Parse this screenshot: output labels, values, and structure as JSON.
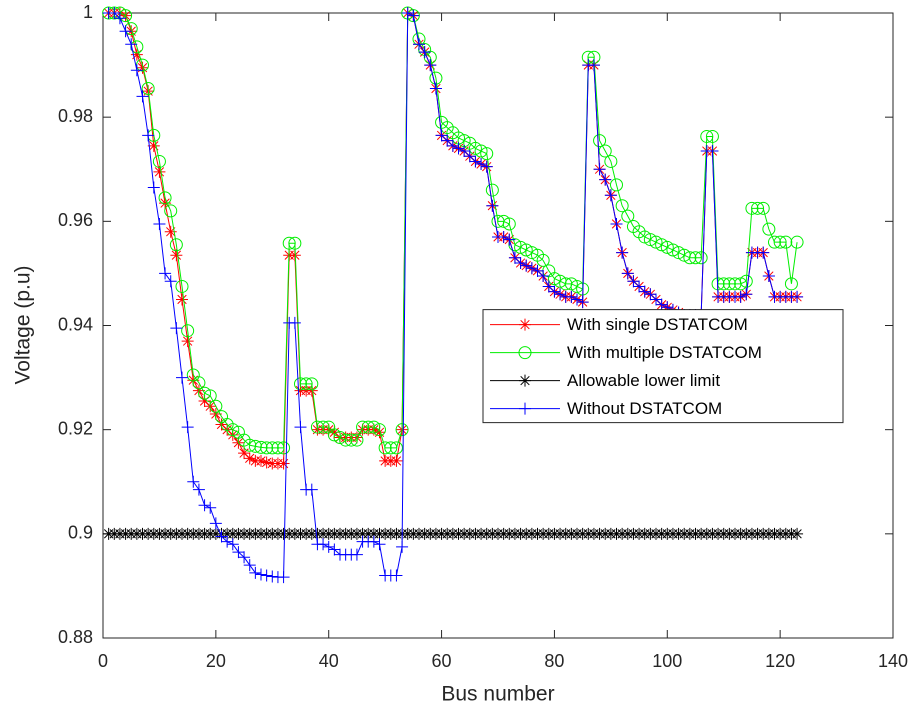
{
  "chart_data": {
    "type": "line",
    "xlabel": "Bus number",
    "ylabel": "Voltage (p.u)",
    "xlim": [
      0,
      140
    ],
    "xticks": [
      0,
      20,
      40,
      60,
      80,
      100,
      120,
      140
    ],
    "ylim": [
      0.88,
      1
    ],
    "yticks": [
      0.88,
      0.9,
      0.92,
      0.94,
      0.96,
      0.98,
      1
    ],
    "legend": "east",
    "grid": false,
    "x": [
      1,
      2,
      3,
      4,
      5,
      6,
      7,
      8,
      9,
      10,
      11,
      12,
      13,
      14,
      15,
      16,
      17,
      18,
      19,
      20,
      21,
      22,
      23,
      24,
      25,
      26,
      27,
      28,
      29,
      30,
      31,
      32,
      33,
      34,
      35,
      36,
      37,
      38,
      39,
      40,
      41,
      42,
      43,
      44,
      45,
      46,
      47,
      48,
      49,
      50,
      51,
      52,
      53,
      54,
      55,
      56,
      57,
      58,
      59,
      60,
      61,
      62,
      63,
      64,
      65,
      66,
      67,
      68,
      69,
      70,
      71,
      72,
      73,
      74,
      75,
      76,
      77,
      78,
      79,
      80,
      81,
      82,
      83,
      84,
      85,
      86,
      87,
      88,
      89,
      90,
      91,
      92,
      93,
      94,
      95,
      96,
      97,
      98,
      99,
      100,
      101,
      102,
      103,
      104,
      105,
      106,
      107,
      108,
      109,
      110,
      111,
      112,
      113,
      114,
      115,
      116,
      117,
      118,
      119,
      120,
      121,
      122,
      123
    ],
    "series": [
      {
        "name": "With single DSTATCOM",
        "color": "#ff0000",
        "marker": "star",
        "values": [
          1,
          1,
          1,
          0.9995,
          0.9965,
          0.992,
          0.9895,
          0.985,
          0.9745,
          0.9695,
          0.9635,
          0.958,
          0.9535,
          0.945,
          0.937,
          0.9295,
          0.9275,
          0.9255,
          0.9245,
          0.923,
          0.921,
          0.92,
          0.919,
          0.9175,
          0.9155,
          0.9145,
          0.914,
          0.914,
          0.9137,
          0.9135,
          0.9135,
          0.9135,
          0.9535,
          0.9535,
          0.9275,
          0.9275,
          0.9275,
          0.92,
          0.92,
          0.92,
          0.9195,
          0.9185,
          0.9185,
          0.9185,
          0.9185,
          0.92,
          0.92,
          0.92,
          0.9195,
          0.914,
          0.914,
          0.914,
          0.92,
          1,
          0.9995,
          0.994,
          0.9925,
          0.99,
          0.9855,
          0.9765,
          0.9755,
          0.9745,
          0.974,
          0.9735,
          0.9725,
          0.9715,
          0.971,
          0.9705,
          0.963,
          0.957,
          0.957,
          0.9565,
          0.953,
          0.952,
          0.9515,
          0.951,
          0.9505,
          0.9495,
          0.9475,
          0.9465,
          0.946,
          0.9455,
          0.9455,
          0.945,
          0.9445,
          0.99,
          0.99,
          0.97,
          0.968,
          0.965,
          0.9595,
          0.954,
          0.95,
          0.9485,
          0.9475,
          0.9465,
          0.946,
          0.945,
          0.944,
          0.9435,
          0.943,
          0.9425,
          0.942,
          0.942,
          0.942,
          0.942,
          0.9735,
          0.9735,
          0.9455,
          0.9455,
          0.9455,
          0.9455,
          0.9455,
          0.946,
          0.954,
          0.954,
          0.954,
          0.9495,
          0.9455,
          0.9455,
          0.9455,
          0.9455,
          0.9455
        ]
      },
      {
        "name": "With multiple DSTATCOM",
        "color": "#00ee00",
        "marker": "circle",
        "values": [
          1,
          1,
          1,
          0.9995,
          0.997,
          0.9935,
          0.99,
          0.9855,
          0.9765,
          0.9715,
          0.9645,
          0.962,
          0.9555,
          0.9475,
          0.939,
          0.9305,
          0.929,
          0.927,
          0.9265,
          0.9245,
          0.9225,
          0.921,
          0.92,
          0.9195,
          0.918,
          0.917,
          0.9168,
          0.9166,
          0.9165,
          0.9165,
          0.9165,
          0.9165,
          0.9558,
          0.9558,
          0.9288,
          0.9288,
          0.9288,
          0.9205,
          0.9205,
          0.9205,
          0.919,
          0.9185,
          0.918,
          0.918,
          0.918,
          0.9205,
          0.9205,
          0.9205,
          0.92,
          0.9165,
          0.9165,
          0.9165,
          0.92,
          1,
          0.9995,
          0.995,
          0.993,
          0.9915,
          0.9875,
          0.979,
          0.978,
          0.977,
          0.976,
          0.9755,
          0.975,
          0.974,
          0.9735,
          0.973,
          0.966,
          0.96,
          0.96,
          0.9595,
          0.9555,
          0.955,
          0.9545,
          0.954,
          0.9535,
          0.9525,
          0.9505,
          0.949,
          0.9485,
          0.948,
          0.948,
          0.9475,
          0.947,
          0.9915,
          0.9915,
          0.9755,
          0.9735,
          0.9715,
          0.967,
          0.963,
          0.961,
          0.959,
          0.958,
          0.957,
          0.9565,
          0.956,
          0.9555,
          0.955,
          0.9545,
          0.954,
          0.9535,
          0.953,
          0.953,
          0.953,
          0.9763,
          0.9763,
          0.948,
          0.948,
          0.948,
          0.948,
          0.948,
          0.9485,
          0.9625,
          0.9625,
          0.9625,
          0.9585,
          0.956,
          0.956,
          0.956,
          0.948,
          0.956
        ]
      },
      {
        "name": "Allowable lower limit",
        "color": "#000000",
        "marker": "star",
        "values": [
          0.9,
          0.9,
          0.9,
          0.9,
          0.9,
          0.9,
          0.9,
          0.9,
          0.9,
          0.9,
          0.9,
          0.9,
          0.9,
          0.9,
          0.9,
          0.9,
          0.9,
          0.9,
          0.9,
          0.9,
          0.9,
          0.9,
          0.9,
          0.9,
          0.9,
          0.9,
          0.9,
          0.9,
          0.9,
          0.9,
          0.9,
          0.9,
          0.9,
          0.9,
          0.9,
          0.9,
          0.9,
          0.9,
          0.9,
          0.9,
          0.9,
          0.9,
          0.9,
          0.9,
          0.9,
          0.9,
          0.9,
          0.9,
          0.9,
          0.9,
          0.9,
          0.9,
          0.9,
          0.9,
          0.9,
          0.9,
          0.9,
          0.9,
          0.9,
          0.9,
          0.9,
          0.9,
          0.9,
          0.9,
          0.9,
          0.9,
          0.9,
          0.9,
          0.9,
          0.9,
          0.9,
          0.9,
          0.9,
          0.9,
          0.9,
          0.9,
          0.9,
          0.9,
          0.9,
          0.9,
          0.9,
          0.9,
          0.9,
          0.9,
          0.9,
          0.9,
          0.9,
          0.9,
          0.9,
          0.9,
          0.9,
          0.9,
          0.9,
          0.9,
          0.9,
          0.9,
          0.9,
          0.9,
          0.9,
          0.9,
          0.9,
          0.9,
          0.9,
          0.9,
          0.9,
          0.9,
          0.9,
          0.9,
          0.9,
          0.9,
          0.9,
          0.9,
          0.9,
          0.9,
          0.9,
          0.9,
          0.9,
          0.9,
          0.9,
          0.9,
          0.9,
          0.9,
          0.9
        ]
      },
      {
        "name": "Without DSTATCOM",
        "color": "#0000ff",
        "marker": "plus",
        "values": [
          1,
          1,
          0.999,
          0.9965,
          0.994,
          0.989,
          0.984,
          0.9765,
          0.9665,
          0.9595,
          0.95,
          0.9485,
          0.9395,
          0.93,
          0.9205,
          0.91,
          0.9085,
          0.9055,
          0.905,
          0.902,
          0.8995,
          0.8985,
          0.898,
          0.8965,
          0.8955,
          0.894,
          0.8925,
          0.8922,
          0.892,
          0.8918,
          0.8917,
          0.8917,
          0.9405,
          0.9405,
          0.9205,
          0.9085,
          0.9085,
          0.898,
          0.898,
          0.8975,
          0.897,
          0.896,
          0.896,
          0.896,
          0.896,
          0.8985,
          0.8985,
          0.8985,
          0.898,
          0.892,
          0.892,
          0.892,
          0.8975,
          1,
          0.9995,
          0.994,
          0.9925,
          0.99,
          0.9855,
          0.9765,
          0.9755,
          0.9745,
          0.974,
          0.9735,
          0.9725,
          0.9715,
          0.971,
          0.9705,
          0.963,
          0.957,
          0.957,
          0.9565,
          0.953,
          0.952,
          0.9515,
          0.951,
          0.9505,
          0.9495,
          0.9475,
          0.9465,
          0.946,
          0.9455,
          0.9455,
          0.945,
          0.9445,
          0.99,
          0.99,
          0.97,
          0.968,
          0.965,
          0.9595,
          0.954,
          0.95,
          0.9485,
          0.9475,
          0.9465,
          0.946,
          0.945,
          0.944,
          0.9435,
          0.943,
          0.9425,
          0.942,
          0.942,
          0.942,
          0.942,
          0.9735,
          0.9735,
          0.9455,
          0.9455,
          0.9455,
          0.9455,
          0.9455,
          0.946,
          0.954,
          0.954,
          0.954,
          0.9495,
          0.9455,
          0.9455,
          0.9455,
          0.9455,
          0.9455
        ]
      }
    ]
  }
}
